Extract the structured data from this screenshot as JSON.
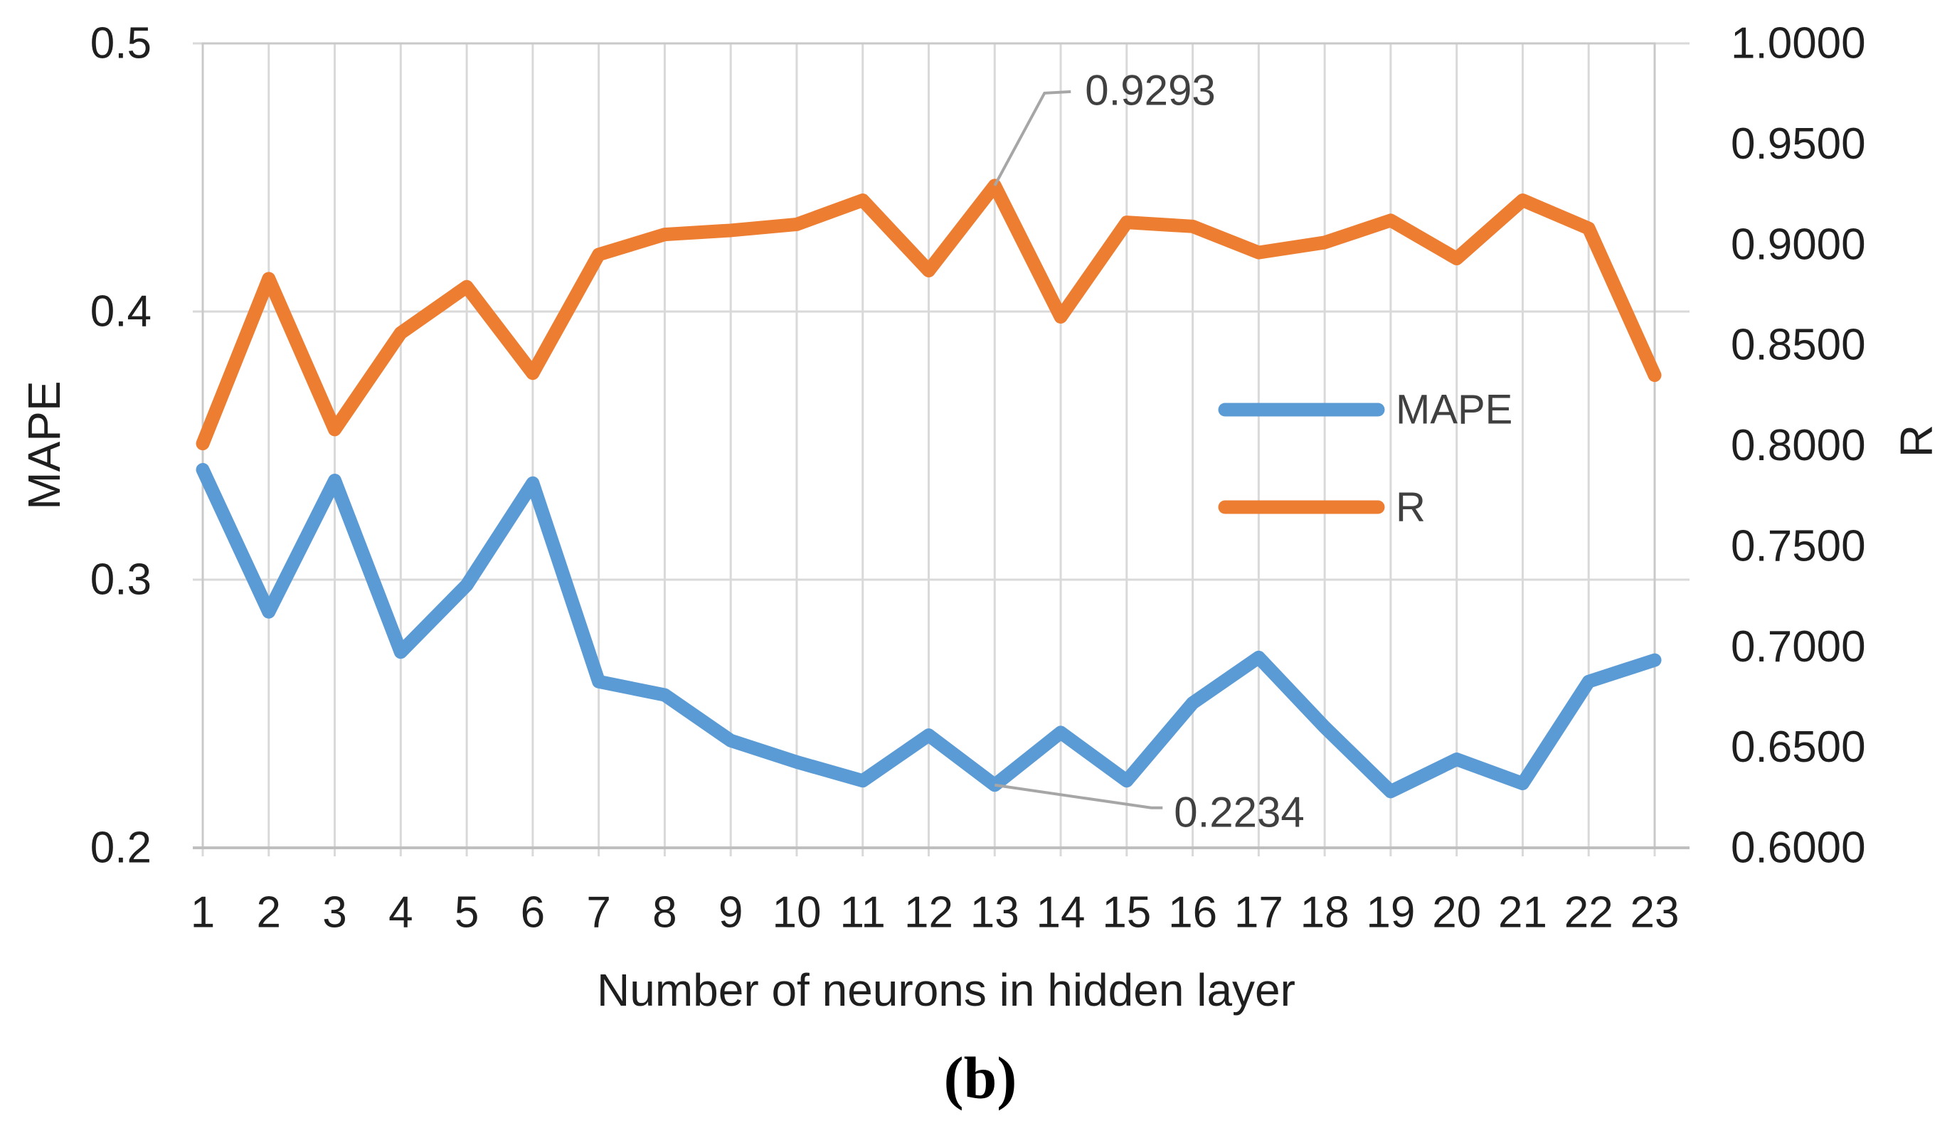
{
  "figure": {
    "caption": "(b)"
  },
  "chart_data": {
    "type": "line",
    "title": "",
    "xlabel": "Number of neurons in hidden layer",
    "ylabel_left": "MAPE",
    "ylabel_right": "R",
    "legend_position": "inside-right",
    "grid": {
      "vertical": true,
      "horizontal": true
    },
    "categories": [
      1,
      2,
      3,
      4,
      5,
      6,
      7,
      8,
      9,
      10,
      11,
      12,
      13,
      14,
      15,
      16,
      17,
      18,
      19,
      20,
      21,
      22,
      23
    ],
    "left_axis": {
      "title": "MAPE",
      "min": 0.2,
      "max": 0.5,
      "ticks": [
        {
          "label": "0.5",
          "value": 0.5
        },
        {
          "label": "0.4",
          "value": 0.4
        },
        {
          "label": "0.3",
          "value": 0.3
        },
        {
          "label": "0.2",
          "value": 0.2
        }
      ]
    },
    "right_axis": {
      "title": "R",
      "min": 0.6,
      "max": 1.0,
      "ticks": [
        {
          "label": "1.0000",
          "value": 1.0
        },
        {
          "label": "0.9500",
          "value": 0.95
        },
        {
          "label": "0.9000",
          "value": 0.9
        },
        {
          "label": "0.8500",
          "value": 0.85
        },
        {
          "label": "0.8000",
          "value": 0.8
        },
        {
          "label": "0.7500",
          "value": 0.75
        },
        {
          "label": "0.7000",
          "value": 0.7
        },
        {
          "label": "0.6500",
          "value": 0.65
        },
        {
          "label": "0.6000",
          "value": 0.6
        }
      ]
    },
    "series": [
      {
        "name": "MAPE",
        "axis": "left",
        "color": "#5B9BD5",
        "values": [
          0.341,
          0.288,
          0.337,
          0.273,
          0.298,
          0.336,
          0.262,
          0.257,
          0.24,
          0.232,
          0.225,
          0.242,
          0.2234,
          0.243,
          0.225,
          0.254,
          0.271,
          0.245,
          0.221,
          0.233,
          0.224,
          0.262,
          0.27
        ]
      },
      {
        "name": "R",
        "axis": "right",
        "color": "#ED7D31",
        "values": [
          0.801,
          0.883,
          0.808,
          0.856,
          0.879,
          0.836,
          0.895,
          0.905,
          0.907,
          0.91,
          0.922,
          0.887,
          0.9293,
          0.864,
          0.911,
          0.909,
          0.896,
          0.901,
          0.912,
          0.893,
          0.922,
          0.908,
          0.835
        ]
      }
    ],
    "annotations": [
      {
        "label": "0.9293",
        "series": "R",
        "category": 13,
        "value": 0.9293
      },
      {
        "label": "0.2234",
        "series": "MAPE",
        "category": 13,
        "value": 0.2234
      }
    ]
  },
  "colors": {
    "background": "#FFFFFF",
    "grid": "#D9D9D9",
    "border": "#C9C9C9",
    "bottom_axis": "#BFBFBF",
    "tick_text": "#1f1f1f",
    "legend_text": "#404040",
    "annotation_text": "#404040",
    "leader_line": "#A6A6A6"
  }
}
